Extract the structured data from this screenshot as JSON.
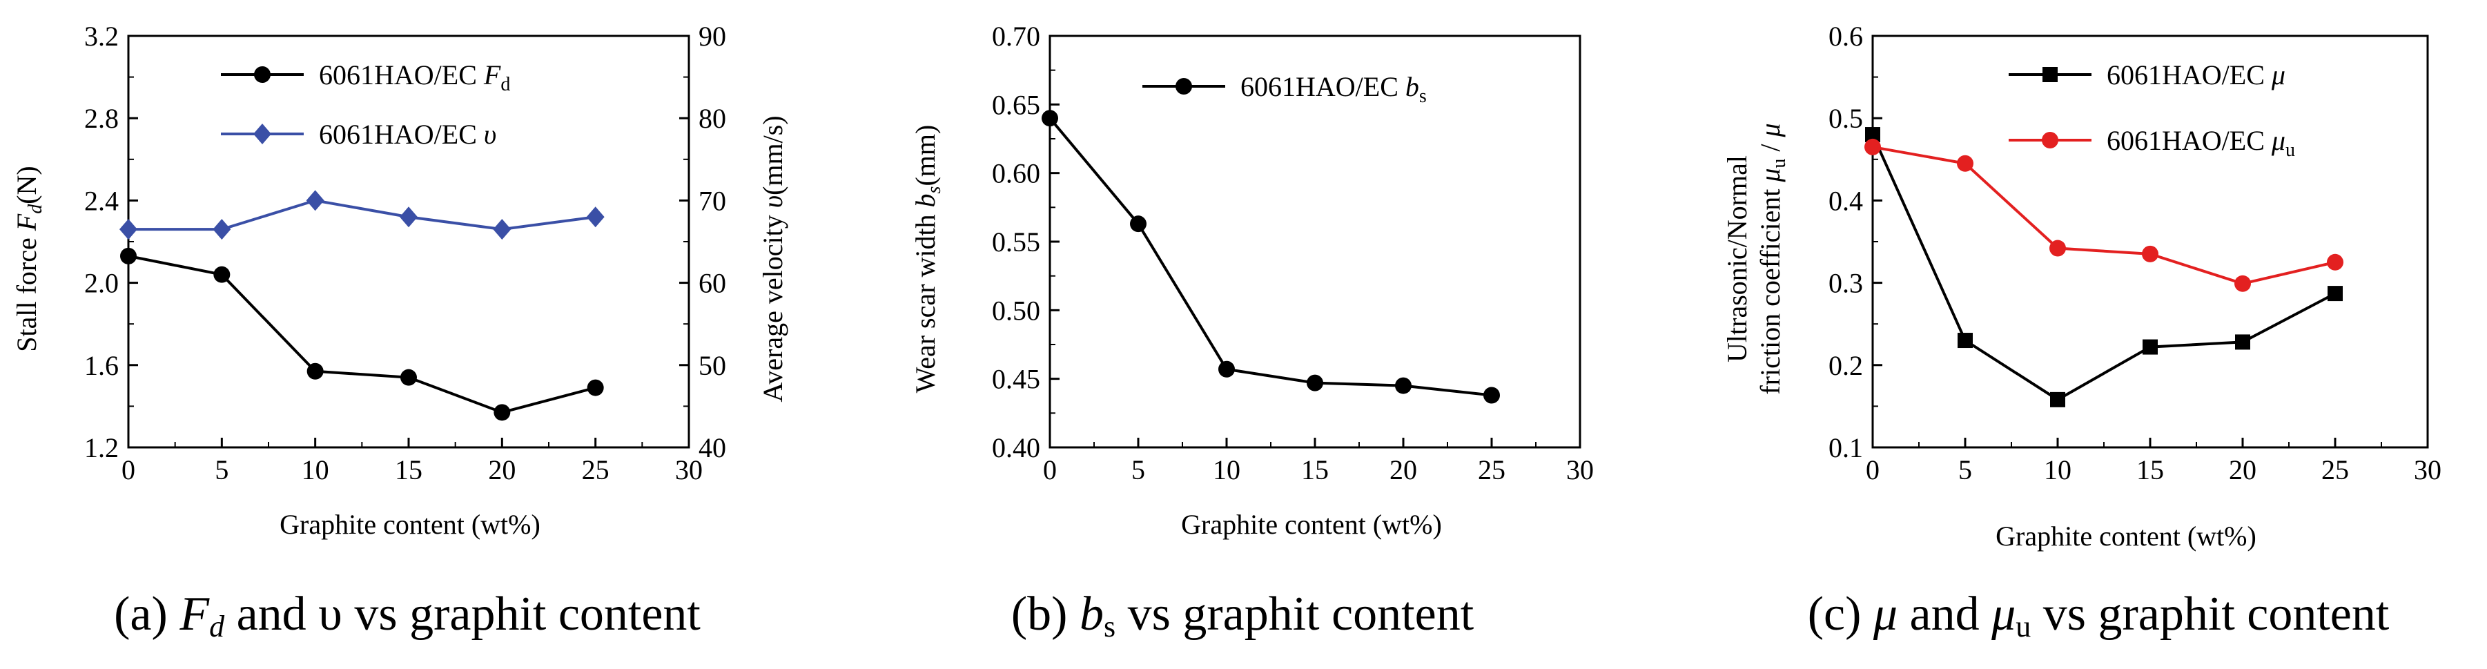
{
  "chart_data": [
    {
      "type": "line",
      "xlabel": "Graphite content (wt%)",
      "ylabel": "Stall force Fd(N)",
      "y2label": "Average velocity υ(mm/s)",
      "xlim": [
        0,
        30
      ],
      "ylim": [
        1.2,
        3.2
      ],
      "y2lim": [
        40,
        90
      ],
      "x_ticks": [
        "0",
        "5",
        "10",
        "15",
        "20",
        "25",
        "30"
      ],
      "y_ticks": [
        "1.2",
        "1.6",
        "2.0",
        "2.4",
        "2.8",
        "3.2"
      ],
      "y2_ticks": [
        "40",
        "50",
        "60",
        "70",
        "80",
        "90"
      ],
      "x": [
        0,
        5,
        10,
        15,
        20,
        25
      ],
      "series": [
        {
          "name": "6061HAO/EC Fd",
          "name_main": "6061HAO/EC ",
          "name_var": "F",
          "name_sub": "d",
          "axis": "left",
          "color": "#000000",
          "marker": "circle",
          "values": [
            2.13,
            2.04,
            1.57,
            1.54,
            1.37,
            1.49
          ]
        },
        {
          "name": "6061HAO/EC υ",
          "name_main": "6061HAO/EC ",
          "name_var": "υ",
          "name_sub": "",
          "axis": "right",
          "color": "#3a4fa6",
          "marker": "diamond",
          "values": [
            66.5,
            66.5,
            70,
            68,
            66.5,
            68
          ]
        }
      ],
      "legend": "top-center",
      "caption": "(a) Fd and υ vs graphit content"
    },
    {
      "type": "line",
      "xlabel": "Graphite content (wt%)",
      "ylabel": "Wear scar width bs(mm)",
      "xlim": [
        0,
        30
      ],
      "ylim": [
        0.4,
        0.7
      ],
      "x_ticks": [
        "0",
        "5",
        "10",
        "15",
        "20",
        "25",
        "30"
      ],
      "y_ticks": [
        "0.40",
        "0.45",
        "0.50",
        "0.55",
        "0.60",
        "0.65",
        "0.70"
      ],
      "x": [
        0,
        5,
        10,
        15,
        20,
        25
      ],
      "series": [
        {
          "name": "6061HAO/EC bs",
          "name_main": "6061HAO/EC ",
          "name_var": "b",
          "name_sub": "s",
          "axis": "left",
          "color": "#000000",
          "marker": "circle",
          "values": [
            0.64,
            0.563,
            0.457,
            0.447,
            0.445,
            0.438
          ]
        }
      ],
      "legend": "top-center",
      "caption": "(b) bs vs graphit content"
    },
    {
      "type": "line",
      "xlabel": "Graphite content (wt%)",
      "ylabel_line1": "Ultrasonic/Normal",
      "ylabel_line2": "friction coefficient μu / μ",
      "xlim": [
        0,
        30
      ],
      "ylim": [
        0.1,
        0.6
      ],
      "x_ticks": [
        "0",
        "5",
        "10",
        "15",
        "20",
        "25",
        "30"
      ],
      "y_ticks": [
        "0.1",
        "0.2",
        "0.3",
        "0.4",
        "0.5",
        "0.6"
      ],
      "x": [
        0,
        5,
        10,
        15,
        20,
        25
      ],
      "series": [
        {
          "name": "6061HAO/EC μ",
          "name_main": "6061HAO/EC ",
          "name_var": "μ",
          "name_sub": "",
          "axis": "left",
          "color": "#000000",
          "marker": "square",
          "values": [
            0.48,
            0.23,
            0.158,
            0.222,
            0.228,
            0.287
          ]
        },
        {
          "name": "6061HAO/EC μu",
          "name_main": "6061HAO/EC ",
          "name_var": "μ",
          "name_sub": "u",
          "axis": "left",
          "color": "#e32020",
          "marker": "circle",
          "values": [
            0.465,
            0.445,
            0.342,
            0.335,
            0.299,
            0.325
          ]
        }
      ],
      "legend": "top-right",
      "caption": "(c) μ and μu vs graphit content"
    }
  ]
}
